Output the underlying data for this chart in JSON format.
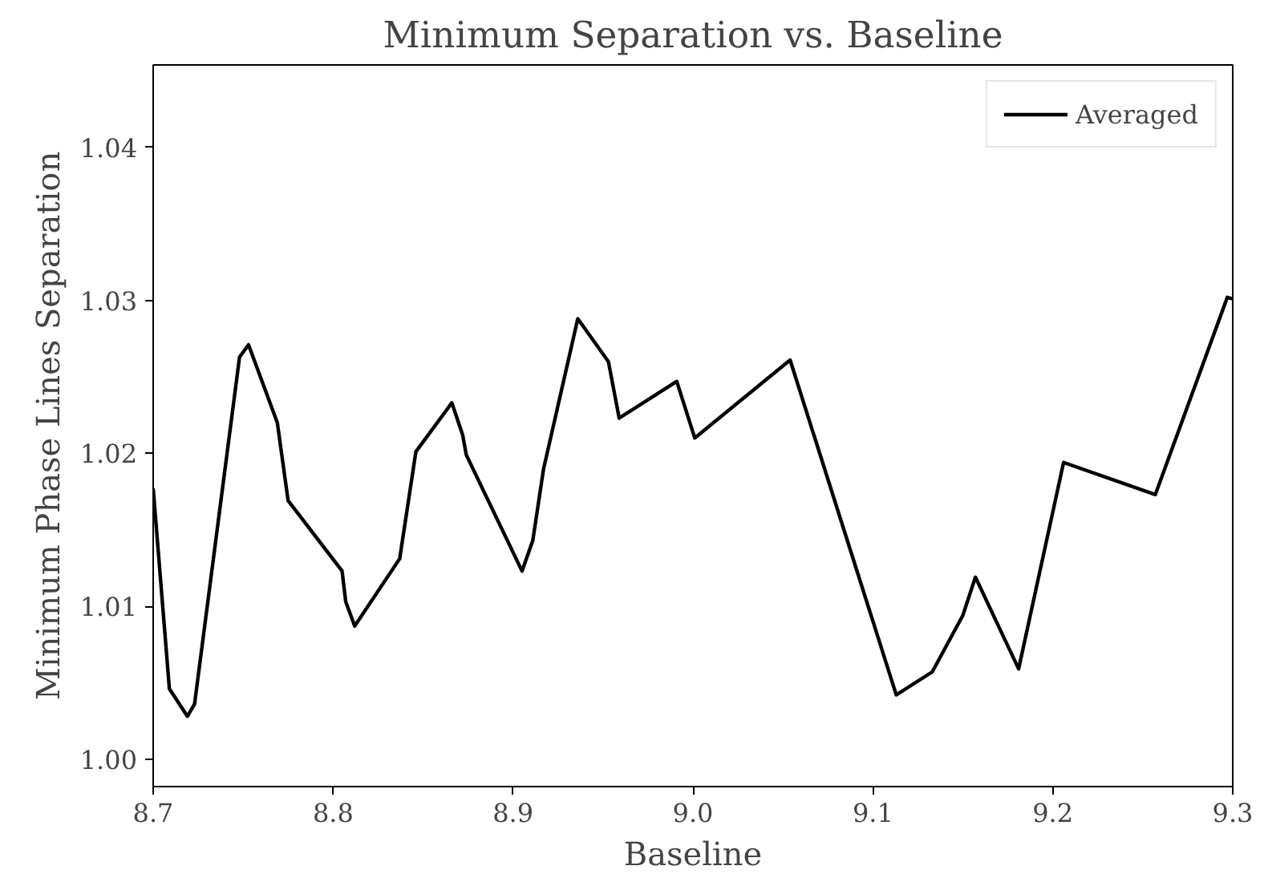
{
  "chart_data": {
    "type": "line",
    "title": "Minimum Separation vs. Baseline",
    "xlabel": "Baseline",
    "ylabel": "Minimum Phase Lines Separation",
    "xlim": [
      8.7,
      9.3
    ],
    "xticks": [
      8.7,
      8.8,
      8.9,
      {
        "value": 9.0,
        "label": "9.0"
      },
      9.1,
      9.2,
      9.3
    ],
    "ylim": [
      0.9982,
      1.0454
    ],
    "yticks": [
      {
        "value": 1.0,
        "label": "1.00"
      },
      1.01,
      1.02,
      1.03,
      1.04
    ],
    "grid": false,
    "legend": "top right",
    "line_style": "solid",
    "series": [
      {
        "name": "Averaged",
        "color": "#000000",
        "x": [
          8.7,
          8.709,
          8.719,
          8.723,
          8.748,
          8.753,
          8.769,
          8.775,
          8.805,
          8.807,
          8.812,
          8.837,
          8.846,
          8.866,
          8.872,
          8.874,
          8.905,
          8.911,
          8.917,
          8.936,
          8.953,
          8.959,
          8.991,
          9.001,
          9.054,
          9.113,
          9.133,
          9.15,
          9.157,
          9.181,
          9.206,
          9.257,
          9.297,
          9.3
        ],
        "values": [
          1.0177,
          1.0046,
          1.0028,
          1.0036,
          1.0263,
          1.0271,
          1.022,
          1.0169,
          1.0123,
          1.0103,
          1.0087,
          1.0131,
          1.0201,
          1.0233,
          1.0212,
          1.0199,
          1.0123,
          1.0143,
          1.019,
          1.0288,
          1.026,
          1.0223,
          1.0247,
          1.021,
          1.0261,
          1.0042,
          1.0057,
          1.0094,
          1.0119,
          1.0059,
          1.0194,
          1.0173,
          1.0302,
          1.0301
        ]
      }
    ]
  }
}
